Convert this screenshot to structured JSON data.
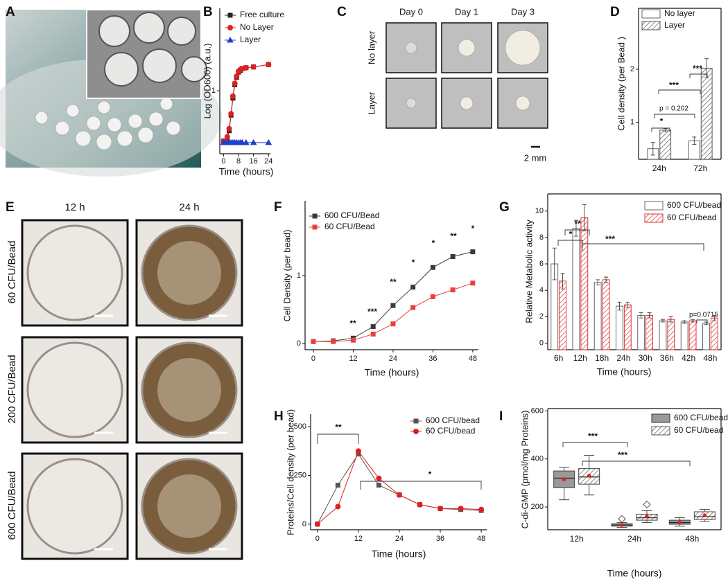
{
  "panels": [
    "A",
    "B",
    "C",
    "D",
    "E",
    "F",
    "G",
    "H",
    "I"
  ],
  "photos": {
    "C": {
      "columns": [
        "Day 0",
        "Day 1",
        "Day 3"
      ],
      "rows": [
        "No layer",
        "Layer"
      ],
      "scale_bar": "2 mm"
    },
    "E": {
      "columns": [
        "12 h",
        "24 h"
      ],
      "rows": [
        "60 CFU/Bead",
        "200 CFU/Bead",
        "600 CFU/Bead"
      ]
    }
  },
  "chart_data": [
    {
      "type": "line",
      "x_label": "Time (hours)",
      "y_label": "Log (OD600) (a.u.)",
      "log_scale": true,
      "x": [
        0,
        1,
        2,
        3,
        4,
        5,
        6,
        7,
        8,
        9,
        10,
        12,
        16,
        24
      ],
      "xlim": [
        -2,
        25
      ],
      "xticks": [
        0,
        8,
        16,
        24
      ],
      "ylim": [
        0.15,
        12
      ],
      "yticks": [
        1
      ],
      "legend": "upper right",
      "series": [
        {
          "name": "Free culture",
          "color": "#222222",
          "marker": "square",
          "values": [
            0.22,
            0.22,
            0.24,
            0.3,
            0.48,
            0.8,
            1.2,
            1.5,
            1.75,
            1.85,
            1.95,
            2.0,
            2.05,
            2.2
          ]
        },
        {
          "name": "No Layer",
          "color": "#e02020",
          "marker": "circle",
          "values": [
            0.22,
            0.22,
            0.25,
            0.32,
            0.5,
            0.85,
            1.25,
            1.55,
            1.8,
            1.9,
            1.95,
            2.0,
            2.05,
            2.2
          ]
        },
        {
          "name": "Layer",
          "color": "#1f3fd0",
          "marker": "triangle",
          "values": [
            0.21,
            0.21,
            0.21,
            0.21,
            0.21,
            0.21,
            0.21,
            0.21,
            0.21,
            0.21,
            0.21,
            0.21,
            0.21,
            0.21
          ]
        }
      ]
    },
    {
      "type": "bar",
      "y_label": "Cell density (per Bead )",
      "categories": [
        "24h",
        "72h"
      ],
      "ylim": [
        0.3,
        3.15
      ],
      "yticks": [
        1,
        2
      ],
      "legend": "upper left",
      "annotations": [
        "*",
        "p = 0.202",
        "***",
        "***"
      ],
      "series": [
        {
          "name": "No layer",
          "color": "#ffffff",
          "values": [
            0.5,
            0.65
          ],
          "errors": [
            0.12,
            0.07
          ]
        },
        {
          "name": "Layer",
          "color": "#555555",
          "pattern": "hatch",
          "values": [
            0.85,
            2.02
          ],
          "errors": [
            0.03,
            0.18
          ]
        }
      ]
    },
    {
      "type": "line",
      "x_label": "Time (hours)",
      "y_label": "Cell Density (per bead)",
      "x": [
        0,
        6,
        12,
        18,
        24,
        30,
        36,
        42,
        48
      ],
      "xlim": [
        -2.5,
        49.7
      ],
      "xticks": [
        0,
        12,
        24,
        36,
        48
      ],
      "ylim": [
        -0.09,
        2.1
      ],
      "yticks": [
        0,
        1
      ],
      "legend": "upper left",
      "annotations": [
        "**",
        "***",
        "**",
        "*",
        "*",
        "**",
        "*"
      ],
      "series": [
        {
          "name": "600 CFU/Bead",
          "color": "#3a3a3a",
          "marker": "square",
          "values": [
            0.03,
            0.04,
            0.08,
            0.25,
            0.56,
            0.83,
            1.12,
            1.28,
            1.35
          ]
        },
        {
          "name": "60 CFU/Bead",
          "color": "#e84040",
          "marker": "square",
          "values": [
            0.03,
            0.03,
            0.05,
            0.14,
            0.29,
            0.53,
            0.69,
            0.79,
            0.89
          ]
        }
      ]
    },
    {
      "type": "bar",
      "x_label": "Time (hours)",
      "y_label": "Relative Metabolic activity",
      "categories": [
        "6h",
        "12h",
        "18h",
        "24h",
        "30h",
        "36h",
        "42h",
        "48h"
      ],
      "ylim": [
        -0.5,
        11.3
      ],
      "yticks": [
        0,
        2,
        4,
        6,
        8,
        10
      ],
      "legend": "upper right",
      "annotations": [
        "*",
        "**",
        "***",
        "p=0.0715"
      ],
      "series": [
        {
          "name": "600 CFU/bead",
          "color": "#ffffff",
          "values": [
            6.0,
            8.7,
            4.6,
            2.8,
            2.1,
            1.7,
            1.6,
            1.5
          ],
          "errors": [
            1.2,
            0.6,
            0.2,
            0.3,
            0.2,
            0.1,
            0.1,
            0.1
          ]
        },
        {
          "name": "60 CFU/bead",
          "color": "#e03030",
          "pattern": "hatch",
          "values": [
            4.7,
            9.5,
            4.8,
            2.9,
            2.1,
            1.8,
            1.7,
            1.9
          ],
          "errors": [
            0.6,
            1.0,
            0.2,
            0.2,
            0.2,
            0.2,
            0.1,
            0.2
          ]
        }
      ]
    },
    {
      "type": "line",
      "x_label": "Time (hours)",
      "y_label": "Proteins/Cell density (per bead)",
      "x": [
        0,
        6,
        12,
        18,
        24,
        30,
        36,
        42,
        48
      ],
      "xlim": [
        -2,
        49.6
      ],
      "xticks": [
        0,
        12,
        24,
        36,
        48
      ],
      "ylim": [
        -29,
        565
      ],
      "yticks": [
        0,
        250,
        500
      ],
      "legend": "upper right",
      "annotations": [
        "**",
        "*"
      ],
      "series": [
        {
          "name": "600 CFU/bead",
          "color": "#555555",
          "marker": "square",
          "values": [
            0,
            200,
            360,
            200,
            150,
            100,
            80,
            75,
            70
          ]
        },
        {
          "name": "60 CFU/bead",
          "color": "#e02020",
          "marker": "circle",
          "values": [
            0,
            90,
            375,
            235,
            150,
            100,
            80,
            80,
            75
          ]
        }
      ]
    },
    {
      "type": "box",
      "x_label": "Time (hours)",
      "y_label": "C-di-GMP (pmol/mg Proteins)",
      "categories": [
        "12h",
        "24h",
        "48h"
      ],
      "ylim": [
        105,
        610
      ],
      "yticks": [
        200,
        400,
        600
      ],
      "legend": "upper right",
      "annotations": [
        "***",
        "***"
      ],
      "series": [
        {
          "name": "600 CFU/bead",
          "color": "#9a9a9a",
          "min": [
            230,
            115,
            120
          ],
          "q1": [
            280,
            120,
            128
          ],
          "median": [
            320,
            125,
            135
          ],
          "q3": [
            350,
            130,
            145
          ],
          "max": [
            365,
            135,
            155
          ],
          "mean": [
            315,
            125,
            135
          ],
          "outliers": [
            null,
            150,
            null
          ]
        },
        {
          "name": "60 CFU/bead",
          "color": "#555555",
          "pattern": "hatch",
          "min": [
            250,
            135,
            140
          ],
          "q1": [
            295,
            145,
            148
          ],
          "median": [
            325,
            155,
            160
          ],
          "q3": [
            360,
            170,
            180
          ],
          "max": [
            415,
            185,
            190
          ],
          "mean": [
            330,
            160,
            165
          ],
          "outliers": [
            null,
            210,
            null
          ]
        }
      ]
    }
  ]
}
